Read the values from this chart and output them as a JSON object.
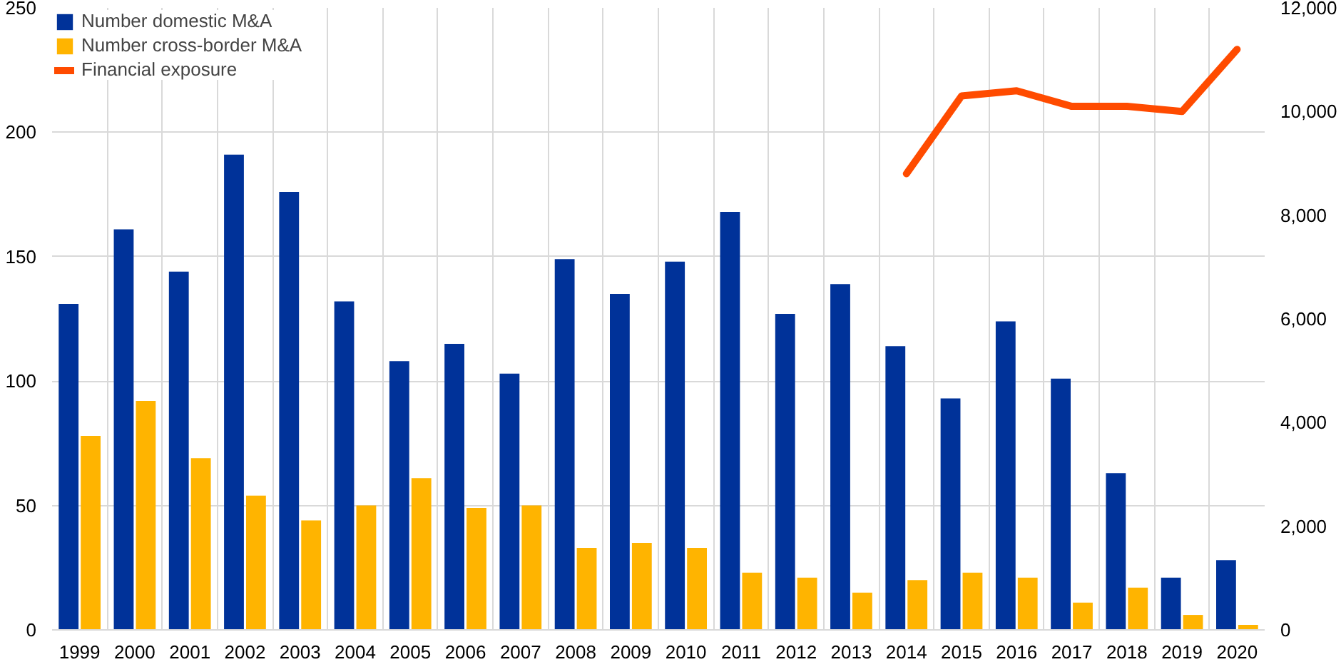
{
  "chart_data": {
    "type": "bar",
    "categories": [
      "1999",
      "2000",
      "2001",
      "2002",
      "2003",
      "2004",
      "2005",
      "2006",
      "2007",
      "2008",
      "2009",
      "2010",
      "2011",
      "2012",
      "2013",
      "2014",
      "2015",
      "2016",
      "2017",
      "2018",
      "2019",
      "2020"
    ],
    "series": [
      {
        "name": "Number domestic M&A",
        "color": "#003299",
        "values": [
          131,
          161,
          144,
          191,
          176,
          132,
          108,
          115,
          103,
          149,
          135,
          148,
          168,
          127,
          139,
          114,
          93,
          124,
          101,
          63,
          21,
          28
        ]
      },
      {
        "name": "Number cross-border M&A",
        "color": "#ffb400",
        "values": [
          78,
          92,
          69,
          54,
          44,
          50,
          61,
          49,
          50,
          33,
          35,
          33,
          23,
          21,
          15,
          20,
          23,
          21,
          11,
          17,
          6,
          2
        ]
      },
      {
        "name": "Financial exposure",
        "type": "line",
        "axis": "y2",
        "color": "#ff4b00",
        "values": [
          null,
          null,
          null,
          null,
          null,
          null,
          null,
          null,
          null,
          null,
          null,
          null,
          null,
          null,
          null,
          8800,
          10300,
          10400,
          10100,
          10100,
          10000,
          11200
        ]
      }
    ],
    "ylim": [
      0,
      250
    ],
    "yticks": [
      0,
      50,
      100,
      150,
      200,
      250
    ],
    "y2lim": [
      0,
      12000
    ],
    "y2ticks": [
      {
        "value": 0,
        "label": "0"
      },
      {
        "value": 2000,
        "label": "2,000"
      },
      {
        "value": 4000,
        "label": "4,000"
      },
      {
        "value": 6000,
        "label": "6,000"
      },
      {
        "value": 8000,
        "label": "8,000"
      },
      {
        "value": 10000,
        "label": "10,000"
      },
      {
        "value": 12000,
        "label": "12,000"
      }
    ],
    "grid": true,
    "legend": "top left"
  }
}
